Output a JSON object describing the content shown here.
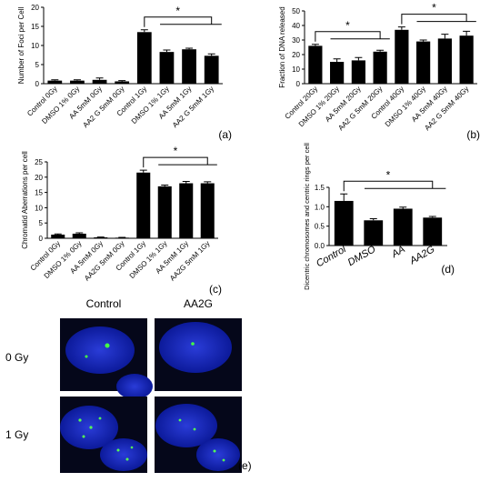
{
  "chart_data": [
    {
      "type": "bar",
      "ylabel": "Number of Foci per Cell",
      "categories": [
        "Control 0Gy",
        "DMSO  1% 0Gy",
        "AA 5mM 0Gy",
        "AA2 G 5mM 0Gy",
        "Control 1Gy",
        "DMSO  1% 1Gy",
        "AA 5mM 1Gy",
        "AA2 G 5mM 1Gy"
      ],
      "values": [
        0.8,
        0.8,
        1.0,
        0.6,
        13.5,
        8.3,
        9.0,
        7.3
      ],
      "errors": [
        0.2,
        0.2,
        0.5,
        0.2,
        0.6,
        0.5,
        0.3,
        0.5
      ],
      "color": "#000000",
      "ylim": [
        0,
        20
      ],
      "yticks": [
        0,
        5,
        10,
        15,
        20
      ],
      "annotations": [
        "*"
      ],
      "panel_label": "(a)"
    },
    {
      "type": "bar",
      "ylabel": "Fraction of DNA released",
      "categories": [
        "Control 20Gy",
        "DMSO  1% 20Gy",
        "AA  5mM  20Gy",
        "AA2 G 5mM  20Gy",
        "Control  40Gy",
        "DMSO  1% 40Gy",
        "AA  5mM 40Gy",
        "AA2 G 5mM 40Gy"
      ],
      "values": [
        26,
        15,
        16,
        22,
        37,
        29,
        31,
        33
      ],
      "errors": [
        1,
        2,
        2,
        1,
        2,
        1,
        3,
        3
      ],
      "color": "#000000",
      "ylim": [
        0,
        50
      ],
      "yticks": [
        0,
        10,
        20,
        30,
        40,
        50
      ],
      "annotations": [
        "*",
        "*"
      ],
      "panel_label": "(b)"
    },
    {
      "type": "bar",
      "ylabel": "Chromatid Aberrations per cell",
      "categories": [
        "Control 0Gy",
        "DMSO 1% 0Gy",
        "AA 5mM 0Gy",
        "AA2G 5mM 0Gy",
        "Control 1Gy",
        "DMSO 1% 1Gy",
        "AA 5mM 1Gy",
        "AA2G 5mM 1Gy"
      ],
      "values": [
        1.2,
        1.5,
        0.3,
        0.2,
        21.5,
        17,
        18,
        18
      ],
      "errors": [
        0.2,
        0.3,
        0.1,
        0.1,
        0.8,
        0.4,
        0.6,
        0.5
      ],
      "color": "#000000",
      "ylim": [
        0,
        25
      ],
      "yticks": [
        0,
        5,
        10,
        15,
        20,
        25
      ],
      "annotations": [
        "*"
      ],
      "panel_label": "(c)"
    },
    {
      "type": "bar",
      "ylabel": "Dicentric chromosomes and centric rings per cell",
      "categories": [
        "Control",
        "DMSO",
        "AA",
        "AA2G"
      ],
      "values": [
        1.15,
        0.65,
        0.95,
        0.72
      ],
      "errors": [
        0.18,
        0.04,
        0.04,
        0.03
      ],
      "color": "#000000",
      "ylim": [
        0,
        1.5
      ],
      "yticks": [
        {
          "value": 0,
          "label": "0.0"
        },
        0.5,
        {
          "value": 1,
          "label": "1.0"
        },
        1.5
      ],
      "annotations": [
        "*"
      ],
      "panel_label": "(d)"
    }
  ],
  "image_panel": {
    "columns": [
      "Control",
      "AA2G"
    ],
    "rows": [
      "0 Gy",
      "1 Gy"
    ],
    "panel_label": "(e)"
  }
}
